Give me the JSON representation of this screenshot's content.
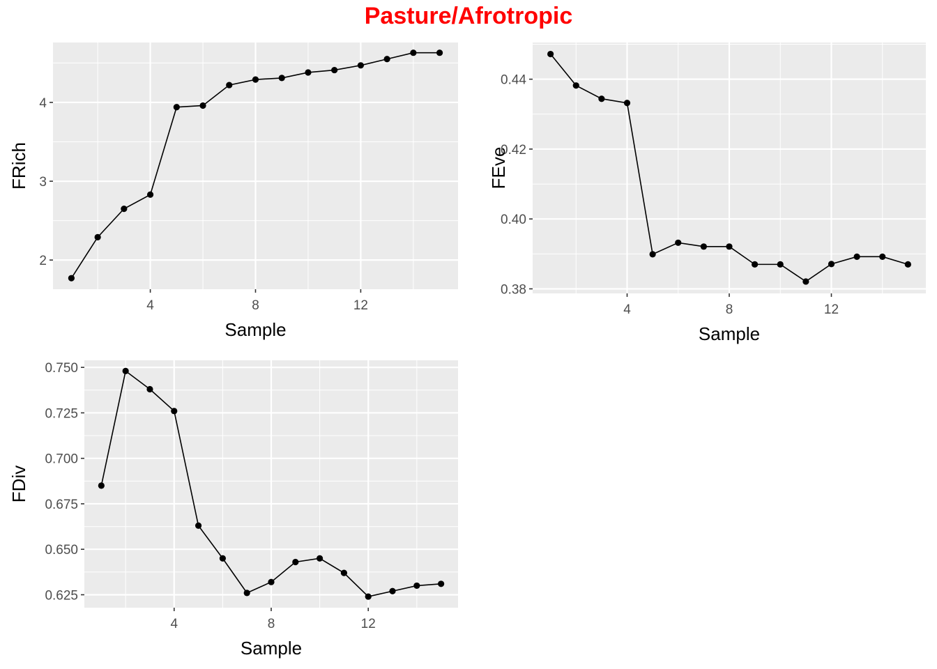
{
  "figure": {
    "title": "Pasture/Afrotropic",
    "title_color": "#ff0000",
    "panel_bg": "#ebebeb",
    "grid_color": "#ffffff",
    "line_color": "#000000"
  },
  "chart_data": [
    {
      "type": "line",
      "xlabel": "Sample",
      "ylabel": "FRich",
      "x": [
        1,
        2,
        3,
        4,
        5,
        6,
        7,
        8,
        9,
        10,
        11,
        12,
        13,
        14,
        15
      ],
      "xticks": [
        4,
        8,
        12
      ],
      "xlim": [
        0.3,
        15.7
      ],
      "yticks": [
        2,
        3,
        4
      ],
      "ylim": [
        1.63,
        4.76
      ],
      "series": [
        {
          "values": [
            1.77,
            2.29,
            2.65,
            2.83,
            3.94,
            3.96,
            4.22,
            4.29,
            4.31,
            4.38,
            4.41,
            4.47,
            4.55,
            4.63,
            4.63
          ]
        }
      ],
      "grid": true
    },
    {
      "type": "line",
      "xlabel": "Sample",
      "ylabel": "FEve",
      "x": [
        1,
        2,
        3,
        4,
        5,
        6,
        7,
        8,
        9,
        10,
        11,
        12,
        13,
        14,
        15
      ],
      "xticks": [
        4,
        8,
        12
      ],
      "xlim": [
        0.3,
        15.7
      ],
      "yticks": [
        0.38,
        0.4,
        0.42,
        0.44
      ],
      "yticklabels": [
        "0.38",
        "0.40",
        "0.42",
        "0.44"
      ],
      "ylim": [
        0.3787,
        0.4505
      ],
      "series": [
        {
          "values": [
            0.4472,
            0.4382,
            0.4344,
            0.4332,
            0.3899,
            0.3932,
            0.3921,
            0.3921,
            0.387,
            0.387,
            0.3821,
            0.3871,
            0.3892,
            0.3892,
            0.387
          ]
        }
      ],
      "grid": true
    },
    {
      "type": "line",
      "xlabel": "Sample",
      "ylabel": "FDiv",
      "x": [
        1,
        2,
        3,
        4,
        5,
        6,
        7,
        8,
        9,
        10,
        11,
        12,
        13,
        14,
        15
      ],
      "xticks": [
        4,
        8,
        12
      ],
      "xlim": [
        0.3,
        15.7
      ],
      "yticks": [
        0.625,
        0.65,
        0.675,
        0.7,
        0.725,
        0.75
      ],
      "yticklabels": [
        "0.625",
        "0.650",
        "0.675",
        "0.700",
        "0.725",
        "0.750"
      ],
      "ylim": [
        0.6179,
        0.7539
      ],
      "series": [
        {
          "values": [
            0.685,
            0.748,
            0.738,
            0.726,
            0.663,
            0.645,
            0.626,
            0.632,
            0.643,
            0.645,
            0.637,
            0.624,
            0.627,
            0.63,
            0.631
          ]
        }
      ],
      "grid": true
    }
  ]
}
